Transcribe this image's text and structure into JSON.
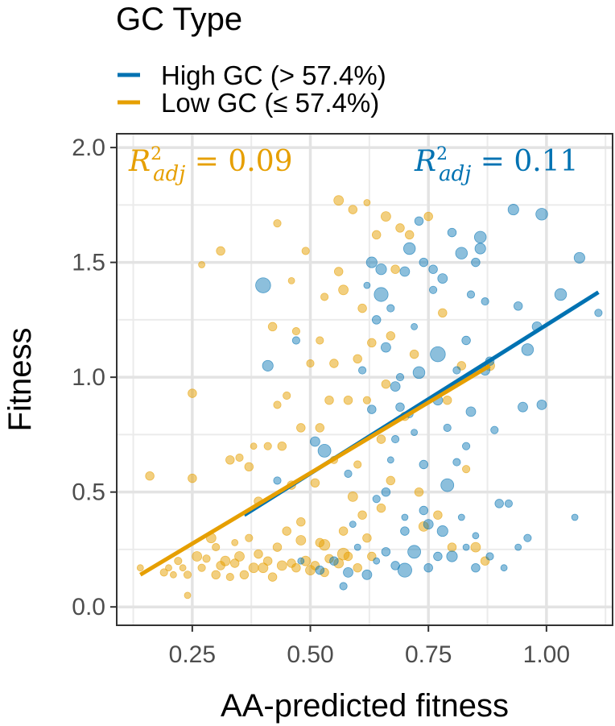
{
  "chart_data": {
    "type": "scatter",
    "title": "",
    "xlabel": "AA-predicted fitness",
    "ylabel": "Fitness",
    "xlim": [
      0.09,
      1.14
    ],
    "ylim": [
      -0.08,
      2.06
    ],
    "x_ticks": [
      0.25,
      0.5,
      0.75,
      1.0
    ],
    "x_tick_labels": [
      "0.25",
      "0.50",
      "0.75",
      "1.00"
    ],
    "y_ticks": [
      0.0,
      0.5,
      1.0,
      1.5,
      2.0
    ],
    "y_tick_labels": [
      "0.0",
      "0.5",
      "1.0",
      "1.5",
      "2.0"
    ],
    "grid": true,
    "legend": {
      "title": "GC Type",
      "placement": "top",
      "entries": [
        "High GC (> 57.4%)",
        "Low GC (≤ 57.4%)"
      ]
    },
    "annotations": [
      {
        "text": "R²adj = 0.09",
        "series": "Low GC (≤ 57.4%)",
        "value": "0.09",
        "placement": "top-left"
      },
      {
        "text": "R²adj = 0.11",
        "series": "High GC (> 57.4%)",
        "value": "0.11",
        "placement": "top-right"
      }
    ],
    "series": [
      {
        "name": "High GC (> 57.4%)",
        "color": "#0072b2",
        "fit_line": {
          "x": [
            0.36,
            1.11
          ],
          "y": [
            0.4,
            1.37
          ]
        },
        "points": [
          [
            0.4,
            1.4,
            14
          ],
          [
            0.41,
            1.05,
            10
          ],
          [
            0.43,
            0.55,
            7
          ],
          [
            0.47,
            1.16,
            7
          ],
          [
            0.51,
            0.72,
            9
          ],
          [
            0.53,
            0.68,
            12
          ],
          [
            0.55,
            0.2,
            8
          ],
          [
            0.58,
            0.15,
            9
          ],
          [
            0.58,
            0.58,
            7
          ],
          [
            0.59,
            0.36,
            6
          ],
          [
            0.61,
            1.03,
            7
          ],
          [
            0.62,
            1.4,
            6
          ],
          [
            0.62,
            0.14,
            9
          ],
          [
            0.63,
            1.5,
            10
          ],
          [
            0.63,
            0.86,
            8
          ],
          [
            0.64,
            1.25,
            8
          ],
          [
            0.64,
            0.47,
            7
          ],
          [
            0.64,
            0.2,
            6
          ],
          [
            0.65,
            1.36,
            13
          ],
          [
            0.65,
            1.47,
            10
          ],
          [
            0.66,
            0.5,
            8
          ],
          [
            0.66,
            1.13,
            9
          ],
          [
            0.67,
            0.64,
            6
          ],
          [
            0.67,
            1.3,
            7
          ],
          [
            0.68,
            0.96,
            9
          ],
          [
            0.68,
            0.18,
            8
          ],
          [
            0.69,
            1.0,
            7
          ],
          [
            0.69,
            0.87,
            8
          ],
          [
            0.7,
            1.46,
            9
          ],
          [
            0.7,
            0.33,
            8
          ],
          [
            0.7,
            0.16,
            13
          ],
          [
            0.71,
            1.56,
            11
          ],
          [
            0.71,
            0.84,
            7
          ],
          [
            0.72,
            0.76,
            6
          ],
          [
            0.72,
            1.22,
            6
          ],
          [
            0.72,
            0.24,
            12
          ],
          [
            0.73,
            1.68,
            8
          ],
          [
            0.73,
            1.02,
            11
          ],
          [
            0.74,
            1.5,
            8
          ],
          [
            0.74,
            0.62,
            8
          ],
          [
            0.75,
            0.17,
            8
          ],
          [
            0.75,
            0.36,
            9
          ],
          [
            0.76,
            1.38,
            7
          ],
          [
            0.76,
            1.47,
            8
          ],
          [
            0.77,
            1.1,
            14
          ],
          [
            0.77,
            0.9,
            9
          ],
          [
            0.77,
            0.22,
            8
          ],
          [
            0.78,
            1.43,
            9
          ],
          [
            0.78,
            0.33,
            10
          ],
          [
            0.79,
            0.53,
            12
          ],
          [
            0.79,
            0.78,
            7
          ],
          [
            0.8,
            0.22,
            10
          ],
          [
            0.8,
            1.63,
            8
          ],
          [
            0.81,
            1.03,
            7
          ],
          [
            0.81,
            0.63,
            7
          ],
          [
            0.82,
            1.54,
            11
          ],
          [
            0.83,
            0.26,
            6
          ],
          [
            0.83,
            1.16,
            8
          ],
          [
            0.83,
            0.7,
            7
          ],
          [
            0.84,
            0.85,
            9
          ],
          [
            0.84,
            1.36,
            7
          ],
          [
            0.85,
            1.5,
            8
          ],
          [
            0.85,
            0.17,
            8
          ],
          [
            0.86,
            1.61,
            11
          ],
          [
            0.86,
            1.56,
            10
          ],
          [
            0.87,
            1.03,
            9
          ],
          [
            0.87,
            1.33,
            7
          ],
          [
            0.88,
            1.07,
            8
          ],
          [
            0.88,
            0.22,
            7
          ],
          [
            0.89,
            0.77,
            7
          ],
          [
            0.9,
            0.45,
            8
          ],
          [
            0.92,
            0.45,
            7
          ],
          [
            0.93,
            1.73,
            10
          ],
          [
            0.94,
            1.31,
            8
          ],
          [
            0.95,
            0.87,
            9
          ],
          [
            0.96,
            1.12,
            11
          ],
          [
            0.96,
            0.3,
            7
          ],
          [
            0.98,
            1.22,
            9
          ],
          [
            0.99,
            1.71,
            11
          ],
          [
            0.99,
            0.88,
            9
          ],
          [
            1.03,
            1.36,
            11
          ],
          [
            1.07,
            1.52,
            10
          ],
          [
            1.11,
            1.28,
            7
          ],
          [
            1.06,
            0.39,
            6
          ],
          [
            0.94,
            0.26,
            6
          ],
          [
            0.91,
            0.17,
            6
          ],
          [
            0.57,
            0.09,
            7
          ],
          [
            0.52,
            0.16,
            8
          ],
          [
            0.48,
            0.2,
            6
          ],
          [
            0.6,
            0.26,
            6
          ],
          [
            0.66,
            0.24,
            8
          ],
          [
            0.7,
            0.39,
            6
          ],
          [
            0.74,
            0.42,
            8
          ],
          [
            0.82,
            0.39,
            6
          ],
          [
            0.68,
            0.73,
            7
          ],
          [
            0.85,
            0.31,
            6
          ]
        ]
      },
      {
        "name": "Low GC (≤ 57.4%)",
        "color": "#e69f00",
        "fit_line": {
          "x": [
            0.14,
            0.88
          ],
          "y": [
            0.14,
            1.05
          ]
        },
        "points": [
          [
            0.14,
            0.17,
            6
          ],
          [
            0.16,
            0.57,
            8
          ],
          [
            0.19,
            0.15,
            7
          ],
          [
            0.2,
            0.17,
            6
          ],
          [
            0.21,
            0.14,
            6
          ],
          [
            0.22,
            0.2,
            7
          ],
          [
            0.23,
            0.17,
            6
          ],
          [
            0.24,
            0.05,
            6
          ],
          [
            0.24,
            0.14,
            7
          ],
          [
            0.25,
            0.93,
            8
          ],
          [
            0.25,
            0.56,
            8
          ],
          [
            0.26,
            0.22,
            9
          ],
          [
            0.27,
            0.17,
            7
          ],
          [
            0.27,
            1.49,
            6
          ],
          [
            0.28,
            0.21,
            7
          ],
          [
            0.29,
            0.3,
            9
          ],
          [
            0.3,
            0.14,
            8
          ],
          [
            0.3,
            0.26,
            7
          ],
          [
            0.31,
            1.55,
            8
          ],
          [
            0.31,
            0.18,
            8
          ],
          [
            0.32,
            0.2,
            9
          ],
          [
            0.33,
            0.13,
            7
          ],
          [
            0.33,
            0.64,
            8
          ],
          [
            0.34,
            0.28,
            6
          ],
          [
            0.34,
            0.19,
            8
          ],
          [
            0.35,
            0.22,
            9
          ],
          [
            0.35,
            0.65,
            7
          ],
          [
            0.36,
            0.14,
            8
          ],
          [
            0.37,
            0.61,
            8
          ],
          [
            0.37,
            0.3,
            7
          ],
          [
            0.38,
            0.17,
            9
          ],
          [
            0.38,
            0.7,
            6
          ],
          [
            0.39,
            0.23,
            8
          ],
          [
            0.39,
            0.46,
            8
          ],
          [
            0.4,
            0.17,
            9
          ],
          [
            0.41,
            0.2,
            8
          ],
          [
            0.41,
            0.7,
            7
          ],
          [
            0.42,
            0.13,
            8
          ],
          [
            0.42,
            1.22,
            8
          ],
          [
            0.43,
            1.67,
            7
          ],
          [
            0.43,
            0.26,
            8
          ],
          [
            0.44,
            0.18,
            9
          ],
          [
            0.44,
            0.7,
            8
          ],
          [
            0.45,
            0.33,
            8
          ],
          [
            0.45,
            0.92,
            7
          ],
          [
            0.46,
            0.19,
            8
          ],
          [
            0.46,
            0.53,
            8
          ],
          [
            0.47,
            1.2,
            7
          ],
          [
            0.47,
            0.17,
            8
          ],
          [
            0.48,
            0.78,
            8
          ],
          [
            0.48,
            0.37,
            8
          ],
          [
            0.49,
            0.2,
            9
          ],
          [
            0.49,
            1.55,
            7
          ],
          [
            0.5,
            0.16,
            9
          ],
          [
            0.5,
            1.06,
            7
          ],
          [
            0.51,
            0.54,
            8
          ],
          [
            0.51,
            0.18,
            8
          ],
          [
            0.52,
            1.16,
            7
          ],
          [
            0.52,
            0.28,
            8
          ],
          [
            0.53,
            1.35,
            7
          ],
          [
            0.53,
            0.15,
            8
          ],
          [
            0.54,
            0.21,
            8
          ],
          [
            0.54,
            0.9,
            8
          ],
          [
            0.55,
            0.64,
            7
          ],
          [
            0.55,
            1.06,
            8
          ],
          [
            0.56,
            1.46,
            8
          ],
          [
            0.56,
            0.19,
            9
          ],
          [
            0.57,
            0.33,
            8
          ],
          [
            0.57,
            1.38,
            9
          ],
          [
            0.58,
            0.9,
            8
          ],
          [
            0.58,
            0.22,
            8
          ],
          [
            0.59,
            1.73,
            8
          ],
          [
            0.59,
            0.48,
            9
          ],
          [
            0.6,
            1.08,
            8
          ],
          [
            0.6,
            0.17,
            8
          ],
          [
            0.61,
            0.4,
            8
          ],
          [
            0.61,
            1.3,
            8
          ],
          [
            0.62,
            0.9,
            7
          ],
          [
            0.62,
            0.3,
            8
          ],
          [
            0.63,
            1.15,
            8
          ],
          [
            0.63,
            0.22,
            8
          ],
          [
            0.64,
            1.62,
            8
          ],
          [
            0.65,
            0.73,
            8
          ],
          [
            0.65,
            0.43,
            8
          ],
          [
            0.66,
            1.7,
            9
          ],
          [
            0.66,
            0.97,
            8
          ],
          [
            0.67,
            0.55,
            8
          ],
          [
            0.67,
            1.18,
            8
          ],
          [
            0.68,
            1.47,
            8
          ],
          [
            0.69,
            1.65,
            8
          ],
          [
            0.7,
            0.83,
            8
          ],
          [
            0.71,
            1.62,
            8
          ],
          [
            0.72,
            1.1,
            8
          ],
          [
            0.73,
            0.5,
            8
          ],
          [
            0.74,
            0.35,
            9
          ],
          [
            0.75,
            1.7,
            8
          ],
          [
            0.77,
            0.4,
            8
          ],
          [
            0.78,
            1.28,
            8
          ],
          [
            0.79,
            0.9,
            8
          ],
          [
            0.8,
            0.26,
            8
          ],
          [
            0.82,
            1.05,
            8
          ],
          [
            0.83,
            0.6,
            7
          ],
          [
            0.85,
            0.26,
            9
          ],
          [
            0.87,
            0.2,
            8
          ],
          [
            0.88,
            1.05,
            9
          ],
          [
            0.56,
            1.77,
            9
          ],
          [
            0.62,
            1.76,
            6
          ],
          [
            0.46,
            1.42,
            6
          ],
          [
            0.53,
            0.27,
            10
          ],
          [
            0.57,
            0.23,
            11
          ],
          [
            0.48,
            0.29,
            9
          ],
          [
            0.52,
            0.78,
            8
          ],
          [
            0.6,
            0.62,
            7
          ],
          [
            0.43,
            0.88,
            7
          ]
        ]
      }
    ]
  }
}
